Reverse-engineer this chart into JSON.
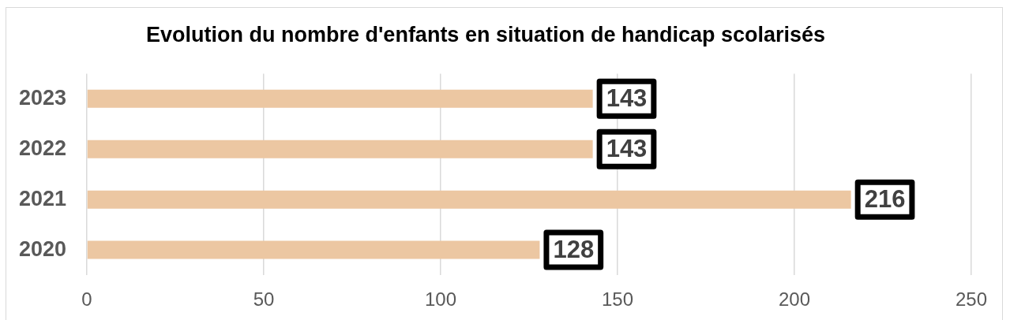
{
  "chart_data": {
    "type": "bar",
    "orientation": "horizontal",
    "title": "Evolution du nombre d'enfants en situation de handicap scolarisés",
    "categories": [
      "2023",
      "2022",
      "2021",
      "2020"
    ],
    "values": [
      143,
      143,
      216,
      128
    ],
    "color": "#ecc7a2",
    "xlim": [
      0,
      250
    ],
    "xticks": [
      0,
      50,
      100,
      150,
      200,
      250
    ],
    "grid": "x",
    "data_labels": true
  }
}
